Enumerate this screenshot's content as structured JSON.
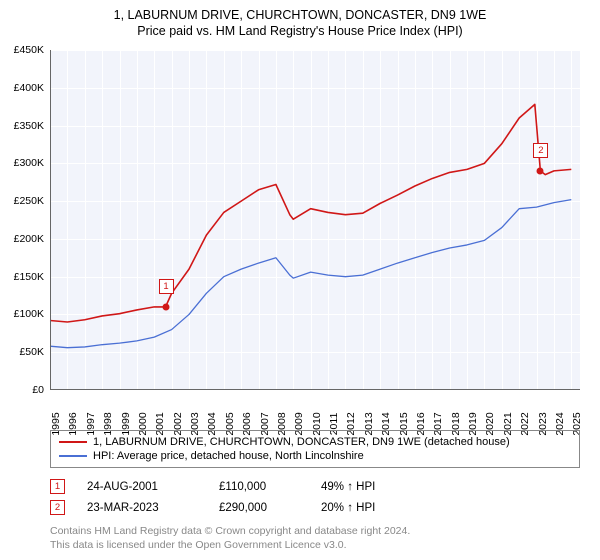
{
  "title_line1": "1, LABURNUM DRIVE, CHURCHTOWN, DONCASTER, DN9 1WE",
  "title_line2": "Price paid vs. HM Land Registry's House Price Index (HPI)",
  "chart": {
    "type": "line",
    "background_color": "#f2f4fb",
    "grid_color": "#ffffff",
    "axis_color": "#666666",
    "xlim": [
      1995,
      2025.5
    ],
    "ylim": [
      0,
      450000
    ],
    "ytick_step": 50000,
    "xtick_step": 1,
    "ytick_labels": [
      "£0",
      "£50K",
      "£100K",
      "£150K",
      "£200K",
      "£250K",
      "£300K",
      "£350K",
      "£400K",
      "£450K"
    ],
    "xtick_labels": [
      "1995",
      "1996",
      "1997",
      "1998",
      "1999",
      "2000",
      "2001",
      "2002",
      "2003",
      "2004",
      "2005",
      "2006",
      "2007",
      "2008",
      "2009",
      "2010",
      "2011",
      "2012",
      "2013",
      "2014",
      "2015",
      "2016",
      "2017",
      "2018",
      "2019",
      "2020",
      "2021",
      "2022",
      "2023",
      "2024",
      "2025"
    ],
    "tick_fontsize": 10.5,
    "series": [
      {
        "name": "property",
        "label": "1, LABURNUM DRIVE, CHURCHTOWN, DONCASTER, DN9 1WE (detached house)",
        "color": "#d01717",
        "line_width": 1.6,
        "x": [
          1995,
          1996,
          1997,
          1998,
          1999,
          2000,
          2001,
          2001.65,
          2002,
          2003,
          2004,
          2005,
          2006,
          2007,
          2008,
          2008.8,
          2009,
          2010,
          2011,
          2012,
          2013,
          2014,
          2015,
          2016,
          2017,
          2018,
          2019,
          2020,
          2021,
          2022,
          2022.9,
          2023.22,
          2023.5,
          2024,
          2025
        ],
        "y": [
          92000,
          90000,
          93000,
          98000,
          101000,
          106000,
          110000,
          110000,
          128000,
          160000,
          205000,
          235000,
          250000,
          265000,
          272000,
          232000,
          226000,
          240000,
          235000,
          232000,
          234000,
          247000,
          258000,
          270000,
          280000,
          288000,
          292000,
          300000,
          326000,
          360000,
          378000,
          290000,
          285000,
          290000,
          292000
        ]
      },
      {
        "name": "hpi",
        "label": "HPI: Average price, detached house, North Lincolnshire",
        "color": "#4a6fd4",
        "line_width": 1.3,
        "x": [
          1995,
          1996,
          1997,
          1998,
          1999,
          2000,
          2001,
          2002,
          2003,
          2004,
          2005,
          2006,
          2007,
          2008,
          2008.8,
          2009,
          2010,
          2011,
          2012,
          2013,
          2014,
          2015,
          2016,
          2017,
          2018,
          2019,
          2020,
          2021,
          2022,
          2023,
          2024,
          2025
        ],
        "y": [
          58000,
          56000,
          57000,
          60000,
          62000,
          65000,
          70000,
          80000,
          100000,
          128000,
          150000,
          160000,
          168000,
          175000,
          152000,
          148000,
          156000,
          152000,
          150000,
          152000,
          160000,
          168000,
          175000,
          182000,
          188000,
          192000,
          198000,
          215000,
          240000,
          242000,
          248000,
          252000
        ]
      }
    ],
    "sale_points": [
      {
        "id": "1",
        "x": 2001.65,
        "y": 110000,
        "color": "#d01717"
      },
      {
        "id": "2",
        "x": 2023.22,
        "y": 290000,
        "color": "#d01717"
      }
    ]
  },
  "legend": {
    "border_color": "#888888",
    "fontsize": 11
  },
  "sales": [
    {
      "id": "1",
      "date": "24-AUG-2001",
      "price": "£110,000",
      "delta": "49% ↑ HPI",
      "color": "#d01717"
    },
    {
      "id": "2",
      "date": "23-MAR-2023",
      "price": "£290,000",
      "delta": "20% ↑ HPI",
      "color": "#d01717"
    }
  ],
  "footer_line1": "Contains HM Land Registry data © Crown copyright and database right 2024.",
  "footer_line2": "This data is licensed under the Open Government Licence v3.0.",
  "footer_color": "#888888"
}
